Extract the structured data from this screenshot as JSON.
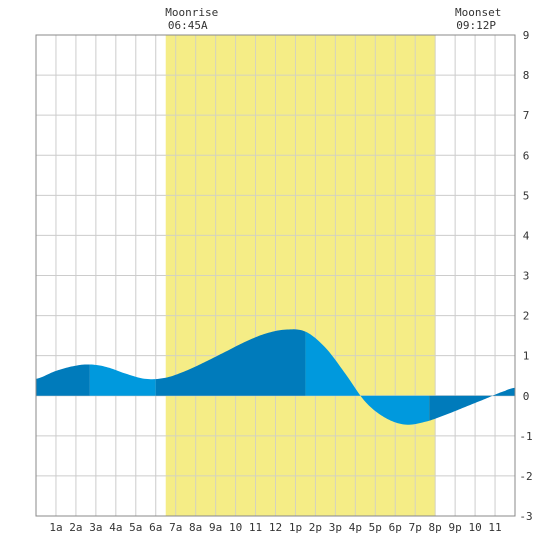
{
  "chart_data": {
    "type": "area",
    "title": "",
    "xlabel": "",
    "ylabel": "",
    "xlim": [
      0,
      24
    ],
    "ylim": [
      -3,
      9
    ],
    "grid": true,
    "x_ticks": [
      {
        "x": 1,
        "label": "1a"
      },
      {
        "x": 2,
        "label": "2a"
      },
      {
        "x": 3,
        "label": "3a"
      },
      {
        "x": 4,
        "label": "4a"
      },
      {
        "x": 5,
        "label": "5a"
      },
      {
        "x": 6,
        "label": "6a"
      },
      {
        "x": 7,
        "label": "7a"
      },
      {
        "x": 8,
        "label": "8a"
      },
      {
        "x": 9,
        "label": "9a"
      },
      {
        "x": 10,
        "label": "10"
      },
      {
        "x": 11,
        "label": "11"
      },
      {
        "x": 12,
        "label": "12"
      },
      {
        "x": 13,
        "label": "1p"
      },
      {
        "x": 14,
        "label": "2p"
      },
      {
        "x": 15,
        "label": "3p"
      },
      {
        "x": 16,
        "label": "4p"
      },
      {
        "x": 17,
        "label": "5p"
      },
      {
        "x": 18,
        "label": "6p"
      },
      {
        "x": 19,
        "label": "7p"
      },
      {
        "x": 20,
        "label": "8p"
      },
      {
        "x": 21,
        "label": "9p"
      },
      {
        "x": 22,
        "label": "10"
      },
      {
        "x": 23,
        "label": "11"
      }
    ],
    "y_ticks": [
      -3,
      -2,
      -1,
      0,
      1,
      2,
      3,
      4,
      5,
      6,
      7,
      8,
      9
    ],
    "moon": {
      "rise_label": "Moonrise",
      "rise_time": "06:45A",
      "rise_x": 6.5,
      "set_label": "Moonset",
      "set_time": "09:12P",
      "set_x": 20.0
    },
    "series": [
      {
        "x": [
          0,
          1,
          2,
          2.7,
          3.5,
          4.5,
          5.5,
          6.5,
          7.5,
          8.5,
          9.5,
          10.5,
          11.5,
          12.5,
          13.5,
          14.5,
          15.5,
          16.5,
          17.5,
          18.5,
          19.5,
          20.5,
          21.5,
          22.5,
          23.5,
          24
        ],
        "values": [
          0.42,
          0.62,
          0.75,
          0.78,
          0.72,
          0.55,
          0.42,
          0.45,
          0.62,
          0.85,
          1.1,
          1.35,
          1.55,
          1.65,
          1.6,
          1.2,
          0.55,
          -0.15,
          -0.55,
          -0.72,
          -0.65,
          -0.48,
          -0.28,
          -0.08,
          0.12,
          0.2
        ]
      }
    ],
    "band_boundaries": [
      0,
      2.7,
      6,
      13.5,
      19.7,
      24
    ],
    "colors": {
      "band_light": "#0099dd",
      "band_dark": "#007bbb",
      "moon_band": "#f5ed86",
      "grid": "#cccccc",
      "axis": "#888888"
    }
  }
}
